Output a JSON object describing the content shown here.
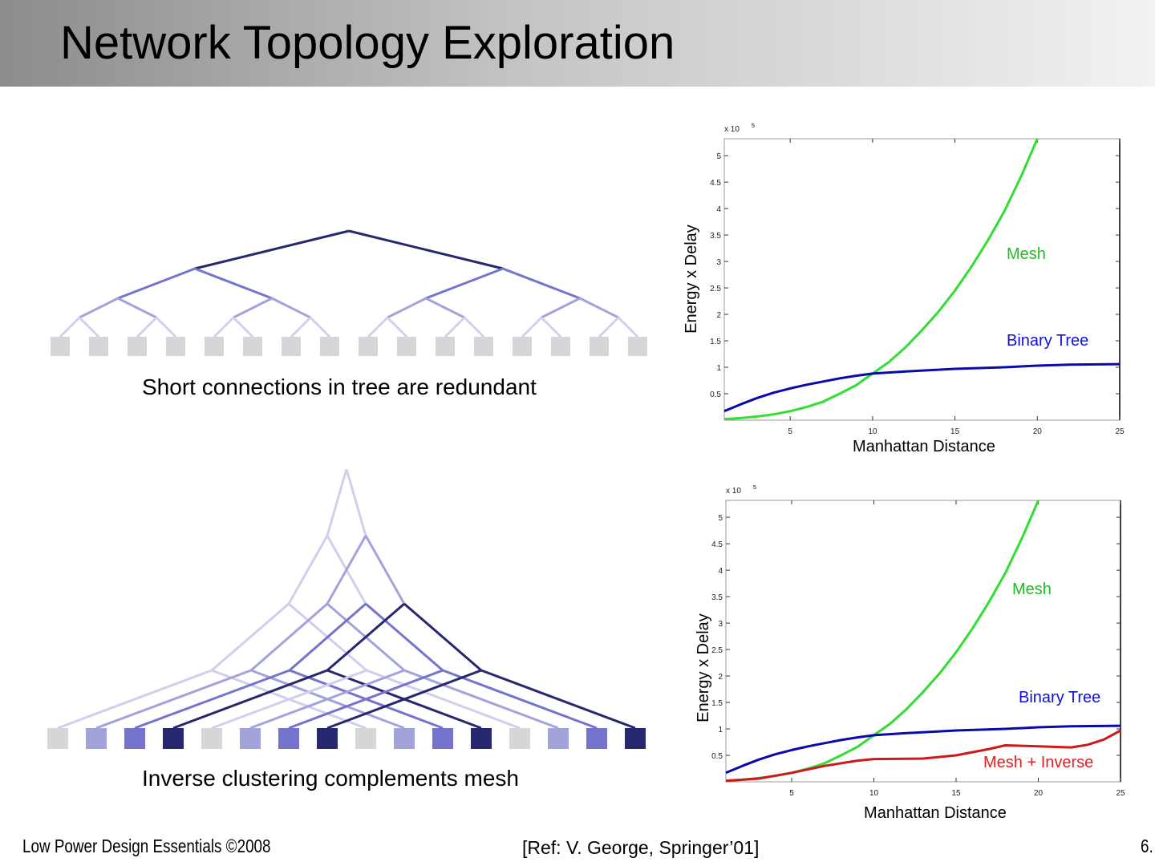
{
  "title": "Network Topology Exploration",
  "captions": {
    "tree": "Short connections in tree are redundant",
    "inverse": "Inverse clustering complements mesh"
  },
  "footer": {
    "left": "Low Power Design Essentials ©2008",
    "ref": "[Ref: V. George, Springer’01]",
    "page": "6."
  },
  "colors": {
    "level0": "#27276f",
    "level1": "#7474cc",
    "level2": "#a3a3dc",
    "level3": "#cfcfee",
    "leaf_gray": "#d6d6d8",
    "mesh": "#33dd33",
    "tree": "#0a0aaa",
    "inverse": "#cc1a1a"
  },
  "chart_data": [
    {
      "type": "line",
      "title": "",
      "xlabel": "Manhattan Distance",
      "ylabel": "Energy x Delay",
      "y_multiplier": "x 10",
      "y_multiplier_exp": "5",
      "xlim": [
        1,
        25
      ],
      "ylim": [
        0,
        5.32
      ],
      "xticks": [
        5,
        10,
        15,
        20,
        25
      ],
      "yticks": [
        0.5,
        1,
        1.5,
        2,
        2.5,
        3,
        3.5,
        4,
        4.5,
        5
      ],
      "ytick_labels": [
        "0.5",
        "1",
        "1.5",
        "2",
        "2.5",
        "3",
        "3.5",
        "4",
        "4.5",
        "5"
      ],
      "grid": false,
      "series": [
        {
          "name": "Mesh",
          "color": "#33dd33",
          "label_color": "#22bb22",
          "x": [
            1,
            2,
            3,
            4,
            5,
            6,
            7,
            8,
            9,
            10,
            11,
            12,
            13,
            14,
            15,
            16,
            17,
            18,
            19,
            20
          ],
          "y": [
            0.02,
            0.04,
            0.07,
            0.11,
            0.17,
            0.25,
            0.35,
            0.5,
            0.66,
            0.88,
            1.1,
            1.38,
            1.7,
            2.05,
            2.45,
            2.9,
            3.4,
            3.95,
            4.6,
            5.32
          ]
        },
        {
          "name": "Binary Tree",
          "color": "#0a0aaa",
          "label_color": "#1010dd",
          "x": [
            1,
            2,
            3,
            4,
            5,
            6,
            7,
            8,
            9,
            10,
            12,
            15,
            18,
            20,
            22,
            25
          ],
          "y": [
            0.17,
            0.3,
            0.42,
            0.52,
            0.6,
            0.67,
            0.73,
            0.79,
            0.84,
            0.88,
            0.92,
            0.97,
            1.0,
            1.03,
            1.05,
            1.06
          ]
        }
      ]
    },
    {
      "type": "line",
      "title": "",
      "xlabel": "Manhattan Distance",
      "ylabel": "Energy x Delay",
      "y_multiplier": "x 10",
      "y_multiplier_exp": "5",
      "xlim": [
        1,
        25
      ],
      "ylim": [
        0,
        5.32
      ],
      "xticks": [
        5,
        10,
        15,
        20,
        25
      ],
      "yticks": [
        0.5,
        1,
        1.5,
        2,
        2.5,
        3,
        3.5,
        4,
        4.5,
        5
      ],
      "ytick_labels": [
        "0.5",
        "1",
        "1.5",
        "2",
        "2.5",
        "3",
        "3.5",
        "4",
        "4.5",
        "5"
      ],
      "grid": false,
      "series": [
        {
          "name": "Mesh",
          "color": "#33dd33",
          "label_color": "#22bb22",
          "x": [
            1,
            2,
            3,
            4,
            5,
            6,
            7,
            8,
            9,
            10,
            11,
            12,
            13,
            14,
            15,
            16,
            17,
            18,
            19,
            20
          ],
          "y": [
            0.02,
            0.04,
            0.07,
            0.11,
            0.17,
            0.25,
            0.35,
            0.5,
            0.66,
            0.88,
            1.1,
            1.38,
            1.7,
            2.05,
            2.45,
            2.9,
            3.4,
            3.95,
            4.6,
            5.32
          ]
        },
        {
          "name": "Binary Tree",
          "color": "#0a0aaa",
          "label_color": "#1010dd",
          "x": [
            1,
            2,
            3,
            4,
            5,
            6,
            7,
            8,
            9,
            10,
            12,
            15,
            18,
            20,
            22,
            25
          ],
          "y": [
            0.17,
            0.3,
            0.42,
            0.52,
            0.6,
            0.67,
            0.73,
            0.79,
            0.84,
            0.88,
            0.92,
            0.97,
            1.0,
            1.03,
            1.05,
            1.06
          ]
        },
        {
          "name": "Mesh + Inverse",
          "color": "#cc1a1a",
          "label_color": "#dd2222",
          "x": [
            1,
            3,
            5,
            7,
            9,
            10,
            13,
            15,
            17,
            18,
            20,
            22,
            23,
            24,
            25
          ],
          "y": [
            0.02,
            0.06,
            0.17,
            0.3,
            0.4,
            0.43,
            0.44,
            0.5,
            0.62,
            0.69,
            0.67,
            0.65,
            0.7,
            0.8,
            0.97
          ]
        }
      ]
    }
  ]
}
